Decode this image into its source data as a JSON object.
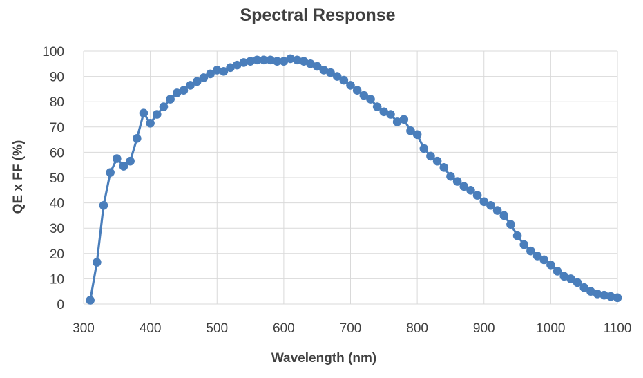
{
  "chart_data": {
    "type": "line",
    "title": "Spectral Response",
    "xlabel": "Wavelength (nm)",
    "ylabel": "QE x FF (%)",
    "xlim": [
      300,
      1100
    ],
    "ylim": [
      0,
      100
    ],
    "xticks": [
      "300",
      "400",
      "500",
      "600",
      "700",
      "800",
      "900",
      "1000",
      "1100"
    ],
    "yticks": [
      "0",
      "10",
      "20",
      "30",
      "40",
      "50",
      "60",
      "70",
      "80",
      "90",
      "100"
    ],
    "grid": true,
    "legend": "none",
    "colors": {
      "series": "#4a7ebb",
      "grid": "#d9d9d9",
      "text": "#404040"
    },
    "series": [
      {
        "x": [
          310,
          320,
          330,
          340,
          350,
          360,
          370,
          380,
          390,
          400,
          410,
          420,
          430,
          440,
          450,
          460,
          470,
          480,
          490,
          500,
          510,
          520,
          530,
          540,
          550,
          560,
          570,
          580,
          590,
          600,
          610,
          620,
          630,
          640,
          650,
          660,
          670,
          680,
          690,
          700,
          710,
          720,
          730,
          740,
          750,
          760,
          770,
          780,
          790,
          800,
          810,
          820,
          830,
          840,
          850,
          860,
          870,
          880,
          890,
          900,
          910,
          920,
          930,
          940,
          950,
          960,
          970,
          980,
          990,
          1000,
          1010,
          1020,
          1030,
          1040,
          1050,
          1060,
          1070,
          1080,
          1090,
          1100
        ],
        "values": [
          1.5,
          16.5,
          39,
          52,
          57.5,
          54.5,
          56.5,
          65.5,
          75.5,
          71.5,
          75,
          78,
          81,
          83.5,
          84.5,
          86.5,
          88,
          89.5,
          91,
          92.5,
          92,
          93.5,
          94.5,
          95.5,
          96,
          96.5,
          96.5,
          96.5,
          96,
          96,
          97,
          96.5,
          96,
          95,
          94,
          92.5,
          91.5,
          90,
          88.5,
          86.5,
          84.5,
          82.5,
          81,
          78,
          76,
          75,
          72,
          73,
          68.5,
          67,
          61.5,
          58.5,
          56.5,
          54,
          50.5,
          48.5,
          46.5,
          45,
          43,
          40.5,
          39,
          37,
          35,
          31.5,
          27,
          23.5,
          21,
          19,
          17.5,
          15.5,
          13,
          11,
          10,
          8.5,
          6.5,
          5,
          4,
          3.5,
          3,
          2.5
        ]
      }
    ]
  }
}
